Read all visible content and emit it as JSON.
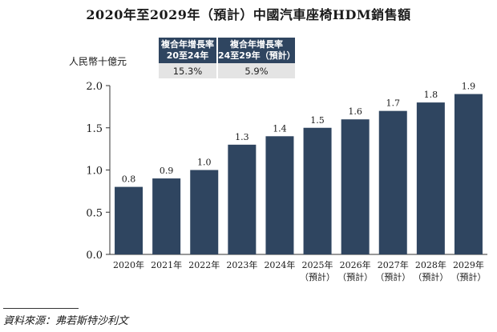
{
  "title": "2020年至2029年（預計）中國汽車座椅HDM銷售額",
  "cagr_table": {
    "headers": [
      "複合年增長率\n20至24年",
      "複合年增長率\n24至29年（預計）"
    ],
    "values": [
      "15.3%",
      "5.9%"
    ]
  },
  "source": "資料來源：弗若斯特沙利文",
  "chart_data": {
    "type": "bar",
    "ylabel": "人民幣十億元",
    "xlabel": "",
    "ylim": [
      0,
      2.0
    ],
    "yticks": [
      "0.0",
      "0.5",
      "1.0",
      "1.5",
      "2.0"
    ],
    "categories": [
      "2020年",
      "2021年",
      "2022年",
      "2023年",
      "2024年",
      "2025年\n（預計）",
      "2026年\n（預計）",
      "2027年\n（預計）",
      "2028年\n（預計）",
      "2029年\n（預計）"
    ],
    "values": [
      0.8,
      0.9,
      1.0,
      1.3,
      1.4,
      1.5,
      1.6,
      1.7,
      1.8,
      1.9
    ],
    "data_labels": [
      "0.8",
      "0.9",
      "1.0",
      "1.3",
      "1.4",
      "1.5",
      "1.6",
      "1.7",
      "1.8",
      "1.9"
    ],
    "bar_color": "#2f4560",
    "grid": false,
    "legend": "none"
  }
}
